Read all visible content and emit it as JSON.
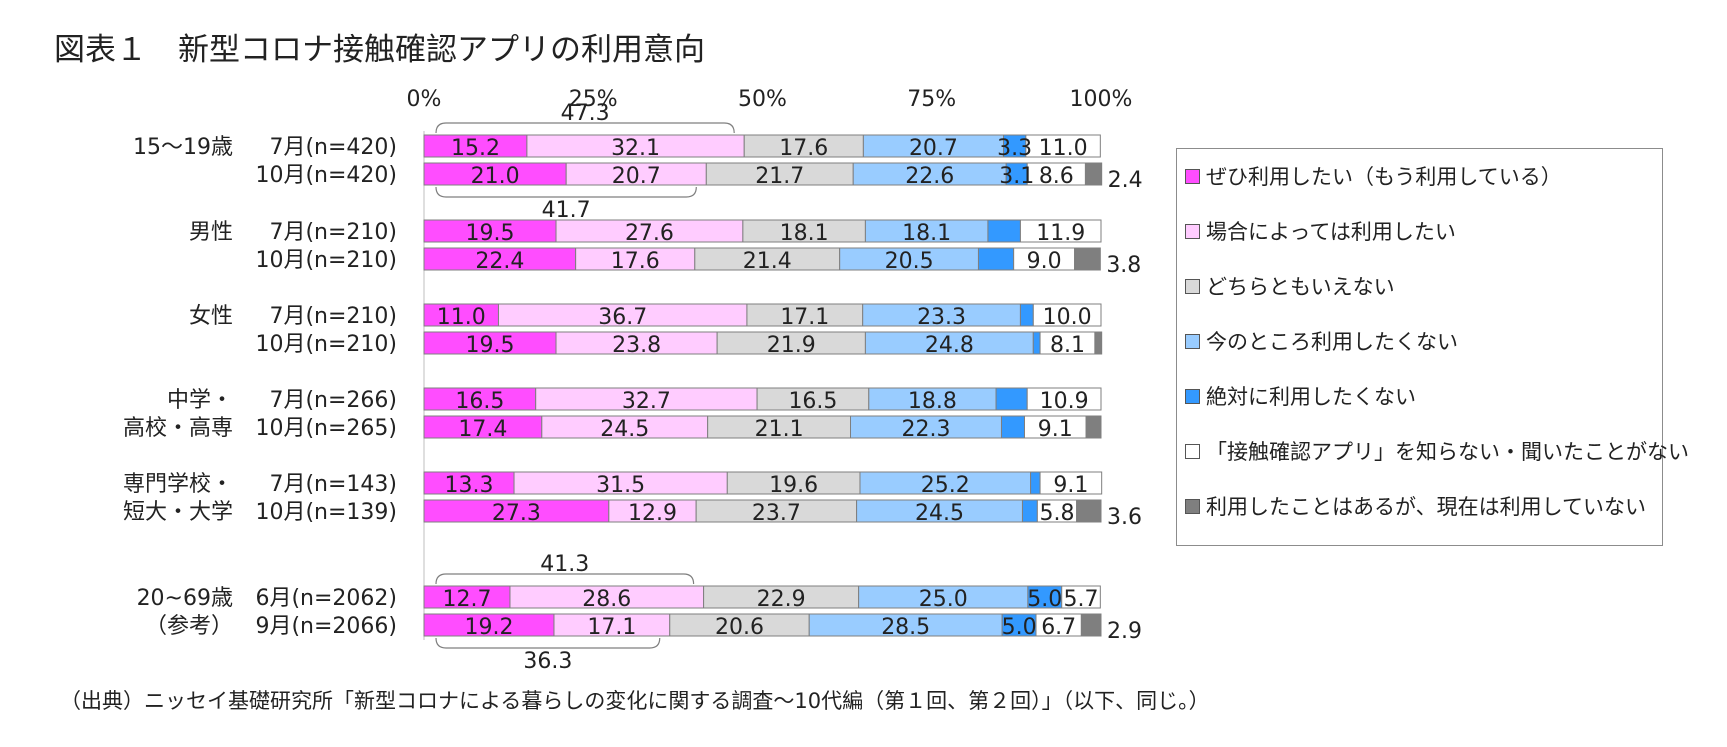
{
  "title": "図表１　新型コロナ接触確認アプリの利用意向",
  "source": "（出典）ニッセイ基礎研究所「新型コロナによる暮らしの変化に関する調査～10代編（第１回、第２回）」（以下、同じ。）",
  "chart_data": {
    "type": "bar",
    "orientation": "horizontal",
    "stacked": true,
    "xlim": [
      0,
      100
    ],
    "x_ticks": [
      "0%",
      "25%",
      "50%",
      "75%",
      "100%"
    ],
    "legend_position": "right",
    "series": [
      {
        "name": "ぜひ利用したい（もう利用している）",
        "color": "#ff4dff"
      },
      {
        "name": "場合によっては利用したい",
        "color": "#ffccff"
      },
      {
        "name": "どちらともいえない",
        "color": "#d9d9d9"
      },
      {
        "name": "今のところ利用したくない",
        "color": "#99ccff"
      },
      {
        "name": "絶対に利用したくない",
        "color": "#3399ff"
      },
      {
        "name": "「接触確認アプリ」を知らない・聞いたことがない",
        "color": "#ffffff"
      },
      {
        "name": "利用したことはあるが、現在は利用していない",
        "color": "#7f7f7f"
      }
    ],
    "groups": [
      {
        "label": "15～19歳",
        "rows": [
          {
            "label": "7月(n=420)",
            "values": [
              15.2,
              32.1,
              17.6,
              20.7,
              3.3,
              11.0,
              0
            ],
            "labels": [
              "15.2",
              "32.1",
              "17.6",
              "20.7",
              "3.3",
              "11.0",
              ""
            ],
            "outside": ""
          },
          {
            "label": "10月(n=420)",
            "values": [
              21.0,
              20.7,
              21.7,
              22.6,
              3.1,
              8.6,
              2.4
            ],
            "labels": [
              "21.0",
              "20.7",
              "21.7",
              "22.6",
              "3.1",
              "8.6",
              ""
            ],
            "outside": "2.4"
          }
        ]
      },
      {
        "label": "男性",
        "rows": [
          {
            "label": "7月(n=210)",
            "values": [
              19.5,
              27.6,
              18.1,
              18.1,
              4.8,
              11.9,
              0
            ],
            "labels": [
              "19.5",
              "27.6",
              "18.1",
              "18.1",
              "",
              "11.9",
              ""
            ],
            "outside": ""
          },
          {
            "label": "10月(n=210)",
            "values": [
              22.4,
              17.6,
              21.4,
              20.5,
              5.2,
              9.0,
              3.8
            ],
            "labels": [
              "22.4",
              "17.6",
              "21.4",
              "20.5",
              "",
              "9.0",
              ""
            ],
            "outside": "3.8"
          }
        ]
      },
      {
        "label": "女性",
        "rows": [
          {
            "label": "7月(n=210)",
            "values": [
              11.0,
              36.7,
              17.1,
              23.3,
              1.9,
              10.0,
              0
            ],
            "labels": [
              "11.0",
              "36.7",
              "17.1",
              "23.3",
              "",
              "10.0",
              ""
            ],
            "outside": ""
          },
          {
            "label": "10月(n=210)",
            "values": [
              19.5,
              23.8,
              21.9,
              24.8,
              1.0,
              8.1,
              1.0
            ],
            "labels": [
              "19.5",
              "23.8",
              "21.9",
              "24.8",
              "",
              "8.1",
              ""
            ],
            "outside": ""
          }
        ]
      },
      {
        "label": "中学・\n高校・高専",
        "rows": [
          {
            "label": "7月(n=266)",
            "values": [
              16.5,
              32.7,
              16.5,
              18.8,
              4.6,
              10.9,
              0
            ],
            "labels": [
              "16.5",
              "32.7",
              "16.5",
              "18.8",
              "",
              "10.9",
              ""
            ],
            "outside": ""
          },
          {
            "label": "10月(n=265)",
            "values": [
              17.4,
              24.5,
              21.1,
              22.3,
              3.4,
              9.1,
              2.2
            ],
            "labels": [
              "17.4",
              "24.5",
              "21.1",
              "22.3",
              "",
              "9.1",
              ""
            ],
            "outside": ""
          }
        ]
      },
      {
        "label": "専門学校・\n短大・大学",
        "rows": [
          {
            "label": "7月(n=143)",
            "values": [
              13.3,
              31.5,
              19.6,
              25.2,
              1.4,
              9.1,
              0
            ],
            "labels": [
              "13.3",
              "31.5",
              "19.6",
              "25.2",
              "",
              "9.1",
              ""
            ],
            "outside": ""
          },
          {
            "label": "10月(n=139)",
            "values": [
              27.3,
              12.9,
              23.7,
              24.5,
              2.2,
              5.8,
              3.6
            ],
            "labels": [
              "27.3",
              "12.9",
              "23.7",
              "24.5",
              "",
              "5.8",
              ""
            ],
            "outside": "3.6"
          }
        ]
      },
      {
        "label": "20~69歳\n（参考）",
        "rows": [
          {
            "label": "6月(n=2062)",
            "values": [
              12.7,
              28.6,
              22.9,
              25.0,
              5.0,
              5.7,
              0
            ],
            "labels": [
              "12.7",
              "28.6",
              "22.9",
              "25.0",
              "5.0",
              "5.7",
              ""
            ],
            "outside": ""
          },
          {
            "label": "9月(n=2066)",
            "values": [
              19.2,
              17.1,
              20.6,
              28.5,
              5.0,
              6.7,
              2.9
            ],
            "labels": [
              "19.2",
              "17.1",
              "20.6",
              "28.5",
              "5.0",
              "6.7",
              ""
            ],
            "outside": "2.9"
          }
        ]
      }
    ],
    "brackets": [
      {
        "group": 0,
        "row": 0,
        "position": "above",
        "value": "47.3"
      },
      {
        "group": 0,
        "row": 1,
        "position": "below",
        "value": "41.7"
      },
      {
        "group": 5,
        "row": 0,
        "position": "above",
        "value": "41.3"
      },
      {
        "group": 5,
        "row": 1,
        "position": "below",
        "value": "36.3"
      }
    ]
  }
}
